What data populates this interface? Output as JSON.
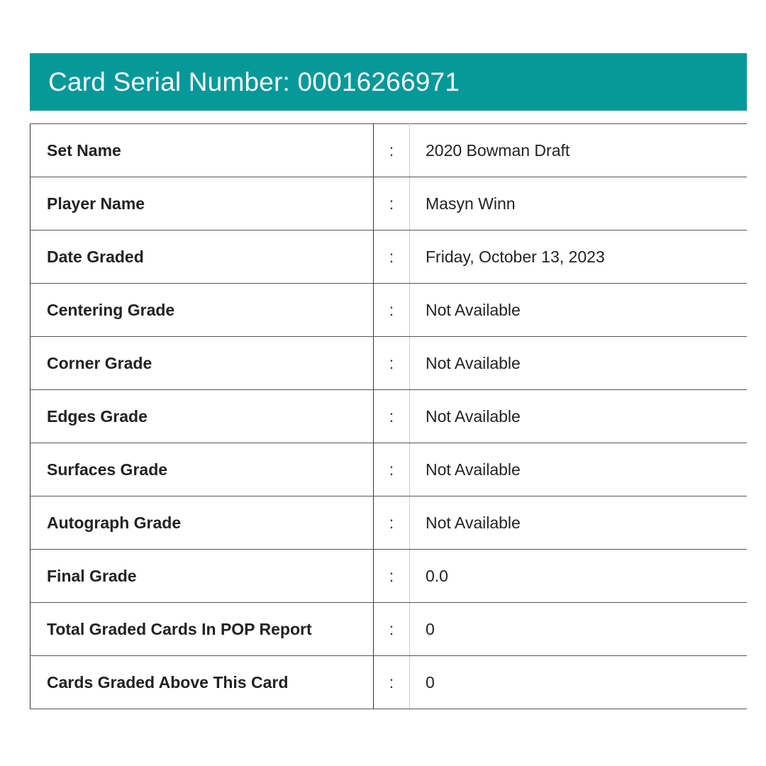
{
  "header": {
    "title": "Card Serial Number: 00016266971",
    "background_color": "#07999a"
  },
  "separator": ":",
  "rows": [
    {
      "label": "Set Name",
      "value": "2020 Bowman Draft"
    },
    {
      "label": "Player Name",
      "value": "Masyn Winn"
    },
    {
      "label": "Date Graded",
      "value": "Friday, October 13, 2023"
    },
    {
      "label": "Centering Grade",
      "value": "Not Available"
    },
    {
      "label": "Corner Grade",
      "value": "Not Available"
    },
    {
      "label": "Edges Grade",
      "value": "Not Available"
    },
    {
      "label": "Surfaces Grade",
      "value": "Not Available"
    },
    {
      "label": "Autograph Grade",
      "value": "Not Available"
    },
    {
      "label": "Final Grade",
      "value": "0.0"
    },
    {
      "label": "Total Graded Cards In POP Report",
      "value": "0"
    },
    {
      "label": "Cards Graded Above This Card",
      "value": "0"
    }
  ]
}
